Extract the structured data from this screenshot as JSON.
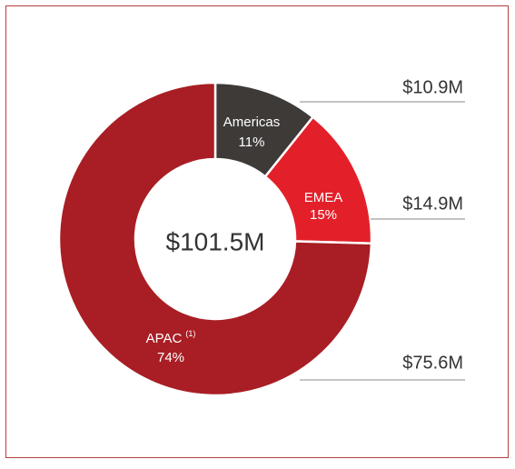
{
  "chart_data": {
    "type": "donut",
    "categories": [
      "Americas",
      "EMEA",
      "APAC"
    ],
    "category_notes": [
      null,
      null,
      "(1)"
    ],
    "values": [
      10900000,
      14900000,
      75600000
    ],
    "value_labels": [
      "$10.9M",
      "$14.9M",
      "$75.6M"
    ],
    "percent_labels": [
      "11%",
      "15%",
      "74%"
    ],
    "total_label": "$101.5M",
    "colors": [
      "#3e3a38",
      "#e3202a",
      "#a81e24"
    ]
  }
}
